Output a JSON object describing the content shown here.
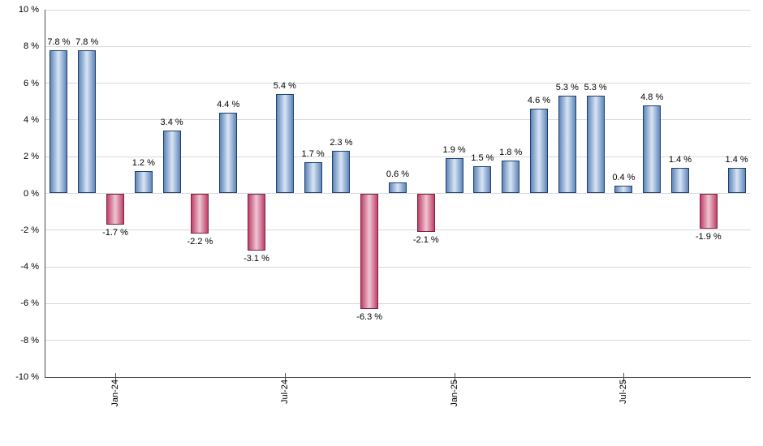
{
  "chart_data": {
    "type": "bar",
    "title": "",
    "xlabel": "",
    "ylabel": "",
    "values": [
      7.8,
      7.8,
      -1.7,
      1.2,
      3.4,
      -2.2,
      4.4,
      -3.1,
      5.4,
      1.7,
      2.3,
      -6.3,
      0.6,
      -2.1,
      1.9,
      1.5,
      1.8,
      4.6,
      5.3,
      5.3,
      0.4,
      4.8,
      1.4,
      -1.9,
      1.4
    ],
    "bar_labels": [
      "7.8 %",
      "7.8 %",
      "-1.7 %",
      "1.2 %",
      "3.4 %",
      "-2.2 %",
      "4.4 %",
      "-3.1 %",
      "5.4 %",
      "1.7 %",
      "2.3 %",
      "-6.3 %",
      "0.6 %",
      "-2.1 %",
      "1.9 %",
      "1.5 %",
      "1.8 %",
      "4.6 %",
      "5.3 %",
      "5.3 %",
      "0.4 %",
      "4.8 %",
      "1.4 %",
      "-1.9 %",
      "1.4 %"
    ],
    "x_ticks": [
      {
        "label": "Jan-24",
        "bar_index": 2
      },
      {
        "label": "Jul-24",
        "bar_index": 8
      },
      {
        "label": "Jan-25",
        "bar_index": 14
      },
      {
        "label": "Jul-25",
        "bar_index": 20
      }
    ],
    "y_tick_labels": [
      "10 %",
      "8 %",
      "6 %",
      "4 %",
      "2 %",
      "0 %",
      "-2 %",
      "-4 %",
      "-6 %",
      "-8 %",
      "-10 %"
    ],
    "y_tick_values": [
      10,
      8,
      6,
      4,
      2,
      0,
      -2,
      -4,
      -6,
      -8,
      -10
    ],
    "ylim": [
      -10,
      10
    ],
    "grid": "horizontal",
    "legend": "none",
    "colors": {
      "positive_edge": "#5f86b9",
      "positive_center": "#d9e5f5",
      "positive_border": "#1f3f70",
      "negative_edge": "#bf4168",
      "negative_center": "#efc6d3",
      "negative_border": "#7c2245",
      "gridline": "#d9d9d9",
      "axis": "#4d4d4d",
      "text": "#000000",
      "background": "#ffffff"
    }
  }
}
